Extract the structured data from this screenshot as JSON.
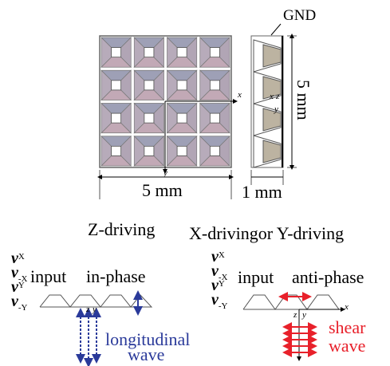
{
  "top": {
    "gnd": "GND",
    "width_label": "5 mm",
    "height_label": "5 mm",
    "side_label": "1 mm",
    "grid_axes": {
      "x": "x",
      "y": "y"
    },
    "side_axes": {
      "x": "x",
      "z": "z",
      "y": "y"
    }
  },
  "z_driving": {
    "title": "Z-driving",
    "velocities": [
      {
        "symbol": "v",
        "sub": "X"
      },
      {
        "symbol": "v",
        "sub": "-X"
      },
      {
        "symbol": "v",
        "sub": "Y"
      },
      {
        "symbol": "v",
        "sub": "-Y"
      }
    ],
    "input": "input",
    "phase": "in-phase",
    "wave": [
      "longitudinal",
      "wave"
    ]
  },
  "xy_driving": {
    "title": "X-drivingor Y-driving",
    "velocities": [
      {
        "symbol": "v",
        "sub": "X"
      },
      {
        "symbol": "v",
        "sub": "-X"
      },
      {
        "symbol": "v",
        "sub": "Y"
      },
      {
        "symbol": "v",
        "sub": "-Y"
      }
    ],
    "input": "input",
    "phase": "anti-phase",
    "wave": [
      "shear",
      "wave"
    ]
  }
}
